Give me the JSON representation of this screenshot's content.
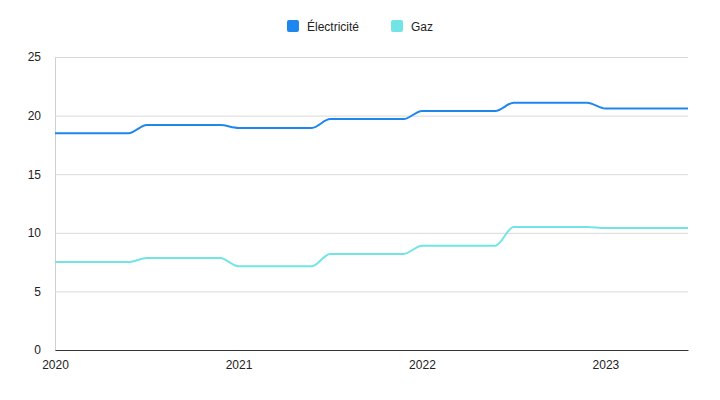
{
  "chart_data": {
    "type": "line",
    "x": [
      2020,
      2020.4,
      2020.5,
      2020.9,
      2021,
      2021.4,
      2021.5,
      2021.9,
      2022,
      2022.4,
      2022.5,
      2022.9,
      2023,
      2023.45
    ],
    "series": [
      {
        "name": "Électricité",
        "color": "#1f86ee",
        "values": [
          18.5,
          18.5,
          19.2,
          19.2,
          18.95,
          18.95,
          19.7,
          19.7,
          20.4,
          20.4,
          21.1,
          21.1,
          20.6,
          20.6
        ]
      },
      {
        "name": "Gaz",
        "color": "#72e4e6",
        "values": [
          7.5,
          7.5,
          7.85,
          7.85,
          7.15,
          7.15,
          8.2,
          8.2,
          8.9,
          8.9,
          10.5,
          10.5,
          10.4,
          10.4
        ]
      }
    ],
    "xlim": [
      2020,
      2023.45
    ],
    "xticks": [
      2020,
      2021,
      2022,
      2023
    ],
    "ylim": [
      0,
      25
    ],
    "yticks": [
      0,
      5,
      10,
      15,
      20,
      25
    ],
    "grid": true,
    "legend": "top"
  }
}
